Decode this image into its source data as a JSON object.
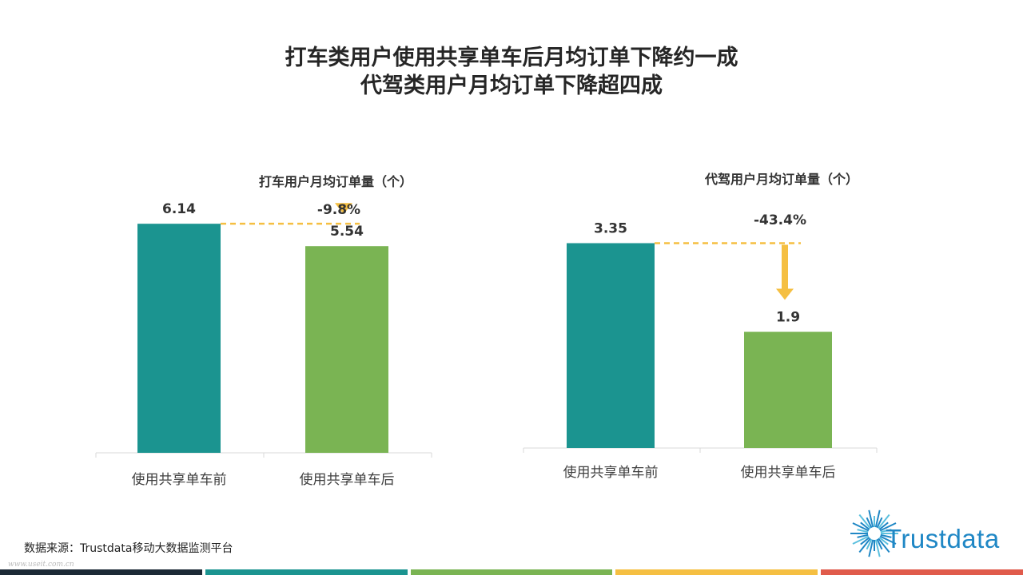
{
  "title_line1": "打车类用户使用共享单车后月均订单下降约一成",
  "title_line2": "代驾类用户月均订单下降超四成",
  "source": "数据来源：Trustdata移动大数据监测平台",
  "watermark": "www.useit.com.cn",
  "logo": {
    "text": "Trustdata",
    "icon": "starburst-icon"
  },
  "colors": {
    "before": "#1b9490",
    "after": "#7ab453",
    "arrow": "#f5bf42",
    "footer": [
      "#1c2a36",
      "#1b9490",
      "#7ab453",
      "#f5bf42",
      "#e05b4b"
    ]
  },
  "chart_data": [
    {
      "type": "bar",
      "title": "打车用户月均订单量（个）",
      "categories": [
        "使用共享单车前",
        "使用共享单车后"
      ],
      "values": [
        6.14,
        5.54
      ],
      "value_labels": [
        "6.14",
        "5.54"
      ],
      "change_label": "-9.8%",
      "ylim": [
        0,
        7.0
      ]
    },
    {
      "type": "bar",
      "title": "代驾用户月均订单量（个）",
      "categories": [
        "使用共享单车前",
        "使用共享单车后"
      ],
      "values": [
        3.35,
        1.9
      ],
      "value_labels": [
        "3.35",
        "1.9"
      ],
      "change_label": "-43.4%",
      "ylim": [
        0,
        3.97
      ]
    }
  ]
}
